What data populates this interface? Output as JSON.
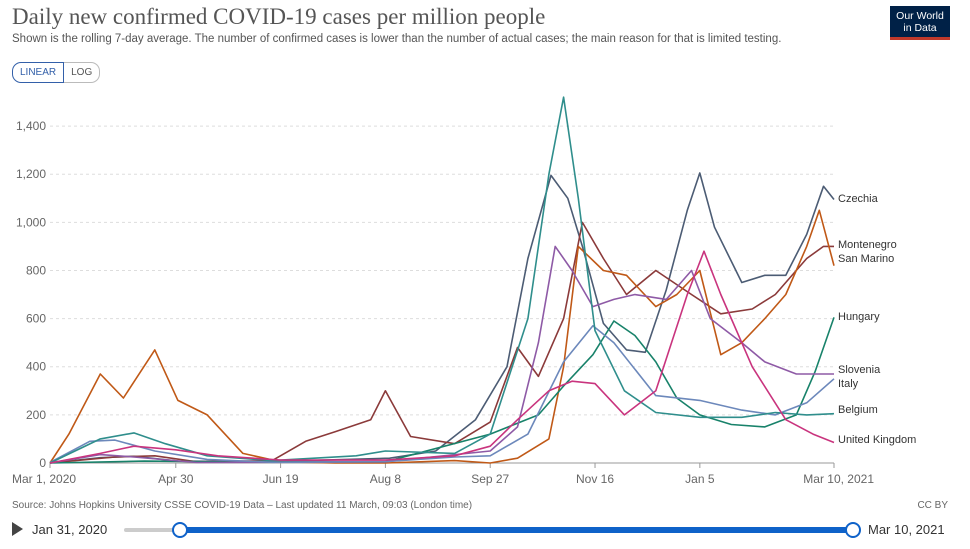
{
  "header": {
    "title": "Daily new confirmed COVID-19 cases per million people",
    "subtitle": "Shown is the rolling 7-day average. The number of confirmed cases is lower than the number of actual cases; the main reason for that is limited testing.",
    "logo_line1": "Our World",
    "logo_line2": "in Data"
  },
  "controls": {
    "linear_label": "LINEAR",
    "log_label": "LOG"
  },
  "footer": {
    "source": "Source: Johns Hopkins University CSSE COVID-19 Data – Last updated 11 March, 09:03 (London time)",
    "license": "CC BY"
  },
  "timeline": {
    "start_label": "Jan 31, 2020",
    "end_label": "Mar 10, 2021"
  },
  "chart_data": {
    "type": "line",
    "x_domain": [
      "2020-03-01",
      "2021-03-10"
    ],
    "ylim": [
      0,
      1550
    ],
    "yticks": [
      0,
      200,
      400,
      600,
      800,
      1000,
      1200,
      1400
    ],
    "ytick_labels": [
      "0",
      "200",
      "400",
      "600",
      "800",
      "1,000",
      "1,200",
      "1,400"
    ],
    "xticks": [
      {
        "date": "2020-03-01",
        "label": "Mar 1, 2020"
      },
      {
        "date": "2020-04-30",
        "label": "Apr 30"
      },
      {
        "date": "2020-06-19",
        "label": "Jun 19"
      },
      {
        "date": "2020-08-08",
        "label": "Aug 8"
      },
      {
        "date": "2020-09-27",
        "label": "Sep 27"
      },
      {
        "date": "2020-11-16",
        "label": "Nov 16"
      },
      {
        "date": "2021-01-05",
        "label": "Jan 5"
      },
      {
        "date": "2021-03-10",
        "label": "Mar 10, 2021"
      }
    ],
    "grid": true,
    "legend": "right",
    "series": [
      {
        "name": "Czechia",
        "color": "#4c5c74",
        "points": [
          [
            "2020-03-01",
            0
          ],
          [
            "2020-03-25",
            22
          ],
          [
            "2020-04-10",
            28
          ],
          [
            "2020-05-01",
            8
          ],
          [
            "2020-06-15",
            5
          ],
          [
            "2020-07-10",
            12
          ],
          [
            "2020-08-10",
            20
          ],
          [
            "2020-09-01",
            50
          ],
          [
            "2020-09-20",
            180
          ],
          [
            "2020-10-05",
            400
          ],
          [
            "2020-10-15",
            850
          ],
          [
            "2020-10-26",
            1195
          ],
          [
            "2020-11-03",
            1100
          ],
          [
            "2020-11-10",
            900
          ],
          [
            "2020-11-20",
            580
          ],
          [
            "2020-12-01",
            470
          ],
          [
            "2020-12-10",
            460
          ],
          [
            "2020-12-20",
            720
          ],
          [
            "2020-12-30",
            1050
          ],
          [
            "2021-01-05",
            1205
          ],
          [
            "2021-01-12",
            980
          ],
          [
            "2021-01-25",
            750
          ],
          [
            "2021-02-05",
            780
          ],
          [
            "2021-02-15",
            780
          ],
          [
            "2021-02-25",
            950
          ],
          [
            "2021-03-05",
            1150
          ],
          [
            "2021-03-10",
            1095
          ]
        ]
      },
      {
        "name": "Montenegro",
        "color": "#8b3a3a",
        "points": [
          [
            "2020-03-01",
            0
          ],
          [
            "2020-04-01",
            25
          ],
          [
            "2020-04-20",
            30
          ],
          [
            "2020-05-10",
            5
          ],
          [
            "2020-06-15",
            10
          ],
          [
            "2020-07-01",
            90
          ],
          [
            "2020-07-15",
            130
          ],
          [
            "2020-08-01",
            180
          ],
          [
            "2020-08-08",
            300
          ],
          [
            "2020-08-20",
            110
          ],
          [
            "2020-09-10",
            80
          ],
          [
            "2020-09-27",
            170
          ],
          [
            "2020-10-10",
            480
          ],
          [
            "2020-10-20",
            360
          ],
          [
            "2020-11-01",
            600
          ],
          [
            "2020-11-10",
            1000
          ],
          [
            "2020-11-20",
            850
          ],
          [
            "2020-12-01",
            700
          ],
          [
            "2020-12-15",
            800
          ],
          [
            "2021-01-01",
            700
          ],
          [
            "2021-01-15",
            620
          ],
          [
            "2021-01-30",
            640
          ],
          [
            "2021-02-10",
            700
          ],
          [
            "2021-02-25",
            850
          ],
          [
            "2021-03-05",
            900
          ],
          [
            "2021-03-10",
            900
          ]
        ]
      },
      {
        "name": "San Marino",
        "color": "#c05917",
        "points": [
          [
            "2020-03-01",
            0
          ],
          [
            "2020-03-10",
            120
          ],
          [
            "2020-03-25",
            370
          ],
          [
            "2020-04-05",
            270
          ],
          [
            "2020-04-20",
            470
          ],
          [
            "2020-05-01",
            260
          ],
          [
            "2020-05-15",
            200
          ],
          [
            "2020-06-01",
            40
          ],
          [
            "2020-06-19",
            5
          ],
          [
            "2020-07-15",
            0
          ],
          [
            "2020-08-08",
            0
          ],
          [
            "2020-09-10",
            10
          ],
          [
            "2020-09-27",
            0
          ],
          [
            "2020-10-10",
            20
          ],
          [
            "2020-10-25",
            100
          ],
          [
            "2020-11-01",
            400
          ],
          [
            "2020-11-08",
            900
          ],
          [
            "2020-11-20",
            800
          ],
          [
            "2020-12-01",
            780
          ],
          [
            "2020-12-15",
            650
          ],
          [
            "2020-12-25",
            700
          ],
          [
            "2021-01-05",
            800
          ],
          [
            "2021-01-15",
            450
          ],
          [
            "2021-01-25",
            500
          ],
          [
            "2021-02-05",
            600
          ],
          [
            "2021-02-15",
            700
          ],
          [
            "2021-02-25",
            900
          ],
          [
            "2021-03-03",
            1050
          ],
          [
            "2021-03-10",
            820
          ]
        ]
      },
      {
        "name": "Hungary",
        "color": "#18826a",
        "points": [
          [
            "2020-03-01",
            0
          ],
          [
            "2020-04-15",
            8
          ],
          [
            "2020-06-01",
            4
          ],
          [
            "2020-08-08",
            5
          ],
          [
            "2020-09-27",
            120
          ],
          [
            "2020-10-20",
            200
          ],
          [
            "2020-11-01",
            320
          ],
          [
            "2020-11-15",
            450
          ],
          [
            "2020-11-25",
            590
          ],
          [
            "2020-12-05",
            530
          ],
          [
            "2020-12-15",
            420
          ],
          [
            "2020-12-25",
            270
          ],
          [
            "2021-01-05",
            200
          ],
          [
            "2021-01-20",
            160
          ],
          [
            "2021-02-05",
            150
          ],
          [
            "2021-02-20",
            200
          ],
          [
            "2021-03-01",
            380
          ],
          [
            "2021-03-10",
            605
          ]
        ]
      },
      {
        "name": "Slovenia",
        "color": "#8e5aa6",
        "points": [
          [
            "2020-03-01",
            0
          ],
          [
            "2020-03-25",
            35
          ],
          [
            "2020-04-10",
            25
          ],
          [
            "2020-05-10",
            2
          ],
          [
            "2020-08-08",
            5
          ],
          [
            "2020-09-27",
            50
          ],
          [
            "2020-10-10",
            150
          ],
          [
            "2020-10-20",
            500
          ],
          [
            "2020-10-28",
            900
          ],
          [
            "2020-11-05",
            800
          ],
          [
            "2020-11-15",
            650
          ],
          [
            "2020-11-25",
            680
          ],
          [
            "2020-12-05",
            700
          ],
          [
            "2020-12-20",
            680
          ],
          [
            "2021-01-01",
            800
          ],
          [
            "2021-01-10",
            600
          ],
          [
            "2021-01-25",
            500
          ],
          [
            "2021-02-05",
            420
          ],
          [
            "2021-02-20",
            370
          ],
          [
            "2021-03-05",
            370
          ],
          [
            "2021-03-10",
            370
          ]
        ]
      },
      {
        "name": "Italy",
        "color": "#6c88bb",
        "points": [
          [
            "2020-03-01",
            2
          ],
          [
            "2020-03-20",
            90
          ],
          [
            "2020-04-01",
            95
          ],
          [
            "2020-04-20",
            50
          ],
          [
            "2020-05-15",
            15
          ],
          [
            "2020-06-15",
            3
          ],
          [
            "2020-08-08",
            6
          ],
          [
            "2020-09-10",
            25
          ],
          [
            "2020-09-27",
            30
          ],
          [
            "2020-10-15",
            120
          ],
          [
            "2020-11-01",
            420
          ],
          [
            "2020-11-15",
            570
          ],
          [
            "2020-11-25",
            500
          ],
          [
            "2020-12-15",
            280
          ],
          [
            "2021-01-05",
            260
          ],
          [
            "2021-01-25",
            220
          ],
          [
            "2021-02-10",
            200
          ],
          [
            "2021-02-25",
            250
          ],
          [
            "2021-03-10",
            350
          ]
        ]
      },
      {
        "name": "Belgium",
        "color": "#2f8e8c",
        "points": [
          [
            "2020-03-01",
            0
          ],
          [
            "2020-03-25",
            100
          ],
          [
            "2020-04-10",
            125
          ],
          [
            "2020-04-25",
            80
          ],
          [
            "2020-05-15",
            30
          ],
          [
            "2020-06-15",
            10
          ],
          [
            "2020-07-25",
            30
          ],
          [
            "2020-08-08",
            50
          ],
          [
            "2020-09-10",
            40
          ],
          [
            "2020-09-27",
            120
          ],
          [
            "2020-10-15",
            600
          ],
          [
            "2020-10-25",
            1200
          ],
          [
            "2020-11-01",
            1520
          ],
          [
            "2020-11-08",
            1100
          ],
          [
            "2020-11-16",
            550
          ],
          [
            "2020-11-30",
            300
          ],
          [
            "2020-12-15",
            210
          ],
          [
            "2021-01-05",
            190
          ],
          [
            "2021-01-25",
            190
          ],
          [
            "2021-02-10",
            210
          ],
          [
            "2021-02-25",
            200
          ],
          [
            "2021-03-10",
            205
          ]
        ]
      },
      {
        "name": "United Kingdom",
        "color": "#c9347e",
        "points": [
          [
            "2020-03-01",
            0
          ],
          [
            "2020-03-25",
            40
          ],
          [
            "2020-04-10",
            70
          ],
          [
            "2020-04-30",
            55
          ],
          [
            "2020-05-20",
            30
          ],
          [
            "2020-06-19",
            12
          ],
          [
            "2020-08-08",
            12
          ],
          [
            "2020-09-10",
            30
          ],
          [
            "2020-09-27",
            70
          ],
          [
            "2020-10-10",
            180
          ],
          [
            "2020-10-25",
            300
          ],
          [
            "2020-11-05",
            340
          ],
          [
            "2020-11-16",
            330
          ],
          [
            "2020-11-30",
            200
          ],
          [
            "2020-12-15",
            300
          ],
          [
            "2020-12-30",
            700
          ],
          [
            "2021-01-07",
            880
          ],
          [
            "2021-01-15",
            700
          ],
          [
            "2021-01-30",
            400
          ],
          [
            "2021-02-15",
            180
          ],
          [
            "2021-02-28",
            120
          ],
          [
            "2021-03-10",
            85
          ]
        ]
      }
    ]
  }
}
